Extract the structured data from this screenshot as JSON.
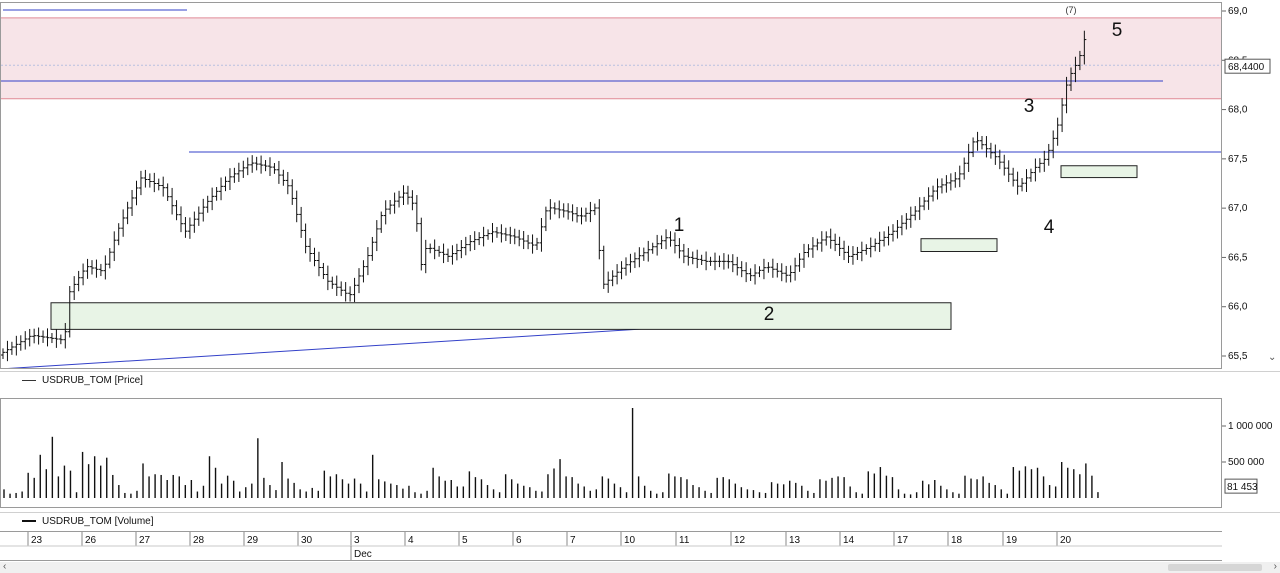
{
  "chart_data": [
    {
      "type": "bar",
      "subtype": "ohlc",
      "series_name": "USDRUB_TOM [Price]",
      "ylim": [
        65.4,
        69.0
      ],
      "y_ticks": [
        "69,0",
        "68,5",
        "68,0",
        "67,5",
        "67,0",
        "66,5",
        "66,0",
        "65,5"
      ],
      "y_tick_values": [
        69.0,
        68.5,
        68.0,
        67.5,
        67.0,
        66.5,
        66.0,
        65.5
      ],
      "last_price_label": "68,4400",
      "last_price": 68.44,
      "grid": false,
      "price_path": [
        [
          0,
          65.5
        ],
        [
          6,
          65.7
        ],
        [
          12,
          65.65
        ],
        [
          13,
          66.15
        ],
        [
          16,
          66.4
        ],
        [
          19,
          66.35
        ],
        [
          22,
          66.8
        ],
        [
          26,
          67.3
        ],
        [
          30,
          67.2
        ],
        [
          34,
          66.75
        ],
        [
          38,
          67.05
        ],
        [
          42,
          67.3
        ],
        [
          46,
          67.45
        ],
        [
          50,
          67.4
        ],
        [
          53,
          67.2
        ],
        [
          56,
          66.6
        ],
        [
          60,
          66.25
        ],
        [
          64,
          66.1
        ],
        [
          67,
          66.45
        ],
        [
          70,
          66.95
        ],
        [
          74,
          67.15
        ],
        [
          76,
          67.0
        ],
        [
          77,
          66.4
        ],
        [
          78,
          66.6
        ],
        [
          82,
          66.5
        ],
        [
          86,
          66.65
        ],
        [
          90,
          66.75
        ],
        [
          94,
          66.7
        ],
        [
          98,
          66.6
        ],
        [
          100,
          67.0
        ],
        [
          104,
          66.95
        ],
        [
          106,
          66.9
        ],
        [
          109,
          67.0
        ],
        [
          110,
          66.2
        ],
        [
          114,
          66.4
        ],
        [
          118,
          66.55
        ],
        [
          122,
          66.7
        ],
        [
          125,
          66.5
        ],
        [
          129,
          66.45
        ],
        [
          133,
          66.45
        ],
        [
          137,
          66.3
        ],
        [
          140,
          66.4
        ],
        [
          144,
          66.3
        ],
        [
          147,
          66.55
        ],
        [
          151,
          66.7
        ],
        [
          155,
          66.5
        ],
        [
          159,
          66.6
        ],
        [
          163,
          66.75
        ],
        [
          167,
          66.95
        ],
        [
          171,
          67.2
        ],
        [
          175,
          67.3
        ],
        [
          178,
          67.7
        ],
        [
          182,
          67.5
        ],
        [
          186,
          67.2
        ],
        [
          189,
          67.4
        ],
        [
          191,
          67.5
        ],
        [
          193,
          67.8
        ],
        [
          195,
          68.3
        ],
        [
          197,
          68.5
        ],
        [
          198,
          68.7
        ]
      ],
      "annotations": [
        {
          "text": "1",
          "bar": 125,
          "price": 66.8
        },
        {
          "text": "2",
          "bar": 141,
          "price": 65.9
        },
        {
          "text": "3",
          "bar": 189,
          "price": 68.0
        },
        {
          "text": "4",
          "bar": 193,
          "price": 66.8
        },
        {
          "text": "5",
          "bar": 205,
          "price": 68.75
        }
      ],
      "levels": [
        {
          "kind": "band",
          "from": 68.1,
          "to": 68.92,
          "color": "#f7e4e8",
          "edge": "#e08a96"
        },
        {
          "kind": "hline",
          "price": 68.28,
          "color": "#3340c8"
        },
        {
          "kind": "hline",
          "price": 67.56,
          "color": "#3340c8"
        },
        {
          "kind": "trend",
          "from": [
            0,
            65.36
          ],
          "to": [
            163,
            65.92
          ],
          "color": "#3340c8"
        }
      ],
      "zones": [
        {
          "from_bar": 9,
          "to_bar": 175,
          "low": 65.76,
          "high": 66.03
        },
        {
          "from_bar": 169,
          "to_bar": 184,
          "low": 66.55,
          "high": 66.68
        },
        {
          "from_bar": 196,
          "to_bar": 210,
          "low": 67.3,
          "high": 67.42
        }
      ]
    },
    {
      "type": "bar",
      "series_name": "USDRUB_TOM [Volume]",
      "ylim": [
        0,
        1300000
      ],
      "y_ticks": [
        "1 000 000",
        "500 000"
      ],
      "y_tick_values": [
        1000000,
        500000
      ],
      "last_volume_label": "81 453",
      "last_volume": 81453,
      "grid": false,
      "values": [
        120000,
        60000,
        70000,
        90000,
        350000,
        280000,
        600000,
        400000,
        850000,
        300000,
        450000,
        380000,
        80000,
        640000,
        470000,
        580000,
        450000,
        560000,
        320000,
        180000,
        70000,
        60000,
        100000,
        480000,
        300000,
        330000,
        320000,
        250000,
        320000,
        300000,
        180000,
        250000,
        90000,
        170000,
        580000,
        420000,
        200000,
        310000,
        240000,
        90000,
        150000,
        200000,
        830000,
        280000,
        180000,
        110000,
        500000,
        270000,
        210000,
        120000,
        90000,
        140000,
        100000,
        380000,
        300000,
        330000,
        260000,
        200000,
        270000,
        200000,
        90000,
        600000,
        260000,
        230000,
        200000,
        180000,
        130000,
        170000,
        80000,
        60000,
        100000,
        420000,
        300000,
        240000,
        250000,
        160000,
        160000,
        370000,
        290000,
        260000,
        180000,
        120000,
        80000,
        330000,
        260000,
        200000,
        170000,
        150000,
        100000,
        90000,
        330000,
        410000,
        540000,
        300000,
        290000,
        200000,
        160000,
        100000,
        120000,
        300000,
        270000,
        200000,
        150000,
        80000,
        1250000,
        300000,
        170000,
        100000,
        60000,
        80000,
        340000,
        300000,
        290000,
        260000,
        180000,
        150000,
        100000,
        70000,
        280000,
        290000,
        260000,
        200000,
        150000,
        120000,
        110000,
        80000,
        70000,
        220000,
        200000,
        190000,
        240000,
        210000,
        170000,
        100000,
        70000,
        260000,
        240000,
        280000,
        300000,
        290000,
        160000,
        80000,
        60000,
        370000,
        340000,
        430000,
        310000,
        290000,
        120000,
        60000,
        50000,
        80000,
        240000,
        190000,
        250000,
        170000,
        120000,
        80000,
        60000,
        310000,
        270000,
        260000,
        300000,
        210000,
        180000,
        120000,
        60000,
        430000,
        380000,
        440000,
        400000,
        420000,
        300000,
        180000,
        160000,
        500000,
        420000,
        400000,
        330000,
        480000,
        310000,
        81453
      ]
    }
  ],
  "x_axis": {
    "labels": [
      "23",
      "26",
      "27",
      "28",
      "29",
      "30",
      "3",
      "4",
      "5",
      "6",
      "7",
      "10",
      "11",
      "12",
      "13",
      "14",
      "17",
      "18",
      "19",
      "20"
    ],
    "bar_index": [
      0,
      18,
      30,
      42,
      54,
      66,
      77,
      89,
      101,
      113,
      125,
      137,
      149,
      161,
      173,
      185,
      197,
      209,
      221,
      233
    ],
    "month_label": "Dec"
  },
  "price_legend": "USDRUB_TOM [Price]",
  "volume_legend": "USDRUB_TOM [Volume]",
  "top_fragment": "(7)"
}
